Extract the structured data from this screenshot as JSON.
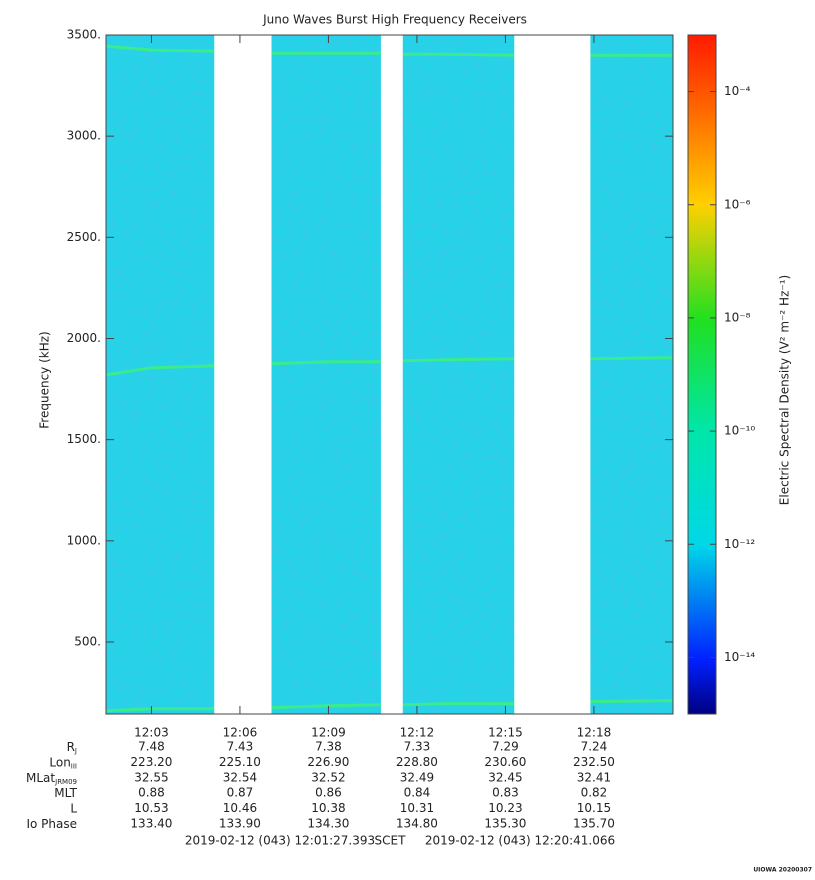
{
  "chart_data": {
    "type": "spectrogram",
    "title": "Juno Waves Burst High Frequency Receivers",
    "y_label": "Frequency (kHz)",
    "ylim": [
      144,
      3500
    ],
    "yticks": [
      {
        "value": 500,
        "label": "500."
      },
      {
        "value": 1000,
        "label": "1000."
      },
      {
        "value": 1500,
        "label": "1500."
      },
      {
        "value": 2000,
        "label": "2000."
      },
      {
        "value": 2500,
        "label": "2500."
      },
      {
        "value": 3000,
        "label": "3000."
      },
      {
        "value": 3500,
        "label": "3500."
      }
    ],
    "xlim": [
      721.46,
      740.68
    ],
    "xticks": [
      {
        "value": 723,
        "label": "12:03"
      },
      {
        "value": 726,
        "label": "12:06"
      },
      {
        "value": 729,
        "label": "12:09"
      },
      {
        "value": 732,
        "label": "12:12"
      },
      {
        "value": 735,
        "label": "12:15"
      },
      {
        "value": 738,
        "label": "12:18"
      }
    ],
    "background_color": "#24d3e6",
    "data_gaps": [
      [
        725.13,
        727.07
      ],
      [
        730.78,
        731.52
      ],
      [
        735.3,
        737.88
      ]
    ],
    "emission_lines": {
      "color": "#3ef07a",
      "x": [
        721.46,
        723,
        725.13,
        727.07,
        729,
        730.78,
        731.52,
        733,
        735.3,
        737.88,
        740.68
      ],
      "series": [
        {
          "values": [
            3445,
            3425,
            3420,
            3410,
            3410,
            3410,
            3405,
            3405,
            3400,
            3400,
            3400
          ]
        },
        {
          "values": [
            1820,
            1855,
            1865,
            1875,
            1885,
            1885,
            1890,
            1895,
            1900,
            1900,
            1905
          ]
        },
        {
          "values": [
            160,
            170,
            170,
            175,
            185,
            190,
            190,
            195,
            195,
            205,
            210
          ]
        }
      ]
    },
    "colorbar": {
      "log_scale": true,
      "clim": [
        1e-15,
        0.001
      ],
      "ticks": [
        {
          "value": 0.0001,
          "label": "10⁻⁴"
        },
        {
          "value": 1e-06,
          "label": "10⁻⁶"
        },
        {
          "value": 1e-08,
          "label": "10⁻⁸"
        },
        {
          "value": 1e-10,
          "label": "10⁻¹⁰"
        },
        {
          "value": 1e-12,
          "label": "10⁻¹²"
        },
        {
          "value": 1e-14,
          "label": "10⁻¹⁴"
        }
      ],
      "label": "Electric Spectral Density (V² m⁻² Hz⁻¹)"
    },
    "ephemeris": [
      {
        "label": "R",
        "sub": "J",
        "values": [
          "7.48",
          "7.43",
          "7.38",
          "7.33",
          "7.29",
          "7.24"
        ]
      },
      {
        "label": "Lon",
        "sub": "III",
        "values": [
          "223.20",
          "225.10",
          "226.90",
          "228.80",
          "230.60",
          "232.50"
        ]
      },
      {
        "label": "MLat",
        "sub": "JRM09",
        "values": [
          "32.55",
          "32.54",
          "32.52",
          "32.49",
          "32.45",
          "32.41"
        ]
      },
      {
        "label": "MLT",
        "values": [
          "0.88",
          "0.87",
          "0.86",
          "0.84",
          "0.83",
          "0.82"
        ]
      },
      {
        "label": "L",
        "values": [
          "10.53",
          "10.46",
          "10.38",
          "10.31",
          "10.23",
          "10.15"
        ]
      },
      {
        "label": "Io Phase",
        "values": [
          "133.40",
          "133.90",
          "134.30",
          "134.80",
          "135.30",
          "135.70"
        ]
      }
    ],
    "start_time": "2019-02-12 (043) 12:01:27.393",
    "time_system": "SCET",
    "end_time": "2019-02-12 (043) 12:20:41.066",
    "credit": "UIOWA 20200307"
  }
}
